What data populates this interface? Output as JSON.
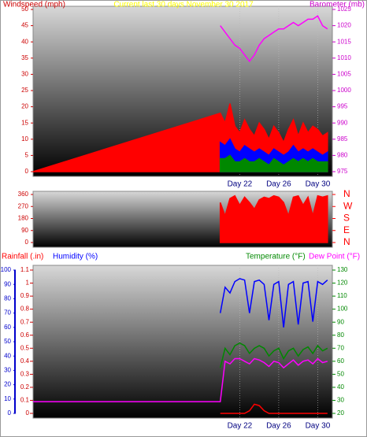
{
  "chart_data": [
    {
      "type": "line",
      "title": "Current last 30 days November 30 2017",
      "ylabel": "Windspeed (mph)",
      "y2label": "Barometer (mb)",
      "ycolor": "#cc0000",
      "y2color": "#cc00cc",
      "xlim": [
        0.8,
        31.5
      ],
      "xticks": [
        {
          "value": 22,
          "label": "Day 22"
        },
        {
          "value": 26,
          "label": "Day 26"
        },
        {
          "value": 30,
          "label": "Day 30"
        }
      ],
      "ylim": [
        0,
        50
      ],
      "yticks": [
        0,
        5,
        10,
        15,
        20,
        25,
        30,
        35,
        40,
        45,
        50
      ],
      "y2lim": [
        975,
        1025
      ],
      "y2ticks": [
        975,
        980,
        985,
        990,
        995,
        1000,
        1005,
        1010,
        1015,
        1020,
        1025
      ],
      "x": [
        0.8,
        20,
        20.5,
        21,
        21.5,
        22,
        22.5,
        23,
        23.5,
        24,
        24.5,
        25,
        25.5,
        26,
        26.5,
        27,
        27.5,
        28,
        28.5,
        29,
        29.5,
        30,
        30.5,
        31
      ],
      "series": [
        {
          "style": "area",
          "color": "#ff0000",
          "values": [
            0,
            18,
            15,
            21,
            14,
            12,
            16,
            13,
            11,
            15,
            13,
            10,
            14,
            12,
            9,
            13,
            16,
            11,
            15,
            12,
            14,
            13,
            11,
            12
          ]
        },
        {
          "style": "area",
          "color": "#0000ff",
          "values": [
            null,
            9,
            8,
            10,
            7,
            6,
            8,
            7,
            6,
            7,
            6,
            5,
            7,
            6,
            5,
            6,
            8,
            6,
            7,
            6,
            7,
            6,
            5,
            6
          ]
        },
        {
          "style": "area",
          "color": "#008800",
          "values": [
            null,
            4,
            4,
            5,
            3,
            3,
            4,
            3,
            3,
            4,
            3,
            2,
            4,
            3,
            2,
            3,
            4,
            3,
            4,
            3,
            4,
            3,
            3,
            3
          ]
        },
        {
          "style": "line",
          "color": "#ff00ff",
          "axis": "y2",
          "values": [
            null,
            1020,
            1018,
            1016,
            1014,
            1013,
            1011,
            1009,
            1011,
            1014,
            1016,
            1017,
            1018,
            1019,
            1019,
            1020,
            1021,
            1020,
            1021,
            1022,
            1022,
            1023,
            1020,
            1019
          ]
        }
      ]
    },
    {
      "type": "line",
      "ycolor": "#cc0000",
      "y2color": "#ff0000",
      "xlim": [
        0.8,
        31.5
      ],
      "ylim": [
        0,
        360
      ],
      "yticks": [
        0,
        90,
        180,
        270,
        360
      ],
      "y2lim": [
        0,
        360
      ],
      "y2ticks": [
        {
          "value": 0,
          "label": "N"
        },
        {
          "value": 90,
          "label": "E"
        },
        {
          "value": 180,
          "label": "S"
        },
        {
          "value": 270,
          "label": "W"
        },
        {
          "value": 360,
          "label": "N"
        }
      ],
      "x": [
        0.8,
        20,
        20.5,
        21,
        21.5,
        22,
        22.5,
        23,
        23.5,
        24,
        24.5,
        25,
        25.5,
        26,
        26.5,
        27,
        27.5,
        28,
        28.5,
        29,
        29.5,
        30,
        30.5,
        31
      ],
      "series": [
        {
          "style": "area",
          "color": "#ff0000",
          "values": [
            null,
            300,
            200,
            330,
            350,
            280,
            340,
            300,
            250,
            320,
            340,
            330,
            350,
            340,
            300,
            200,
            340,
            350,
            280,
            340,
            200,
            350,
            340,
            350
          ]
        }
      ]
    },
    {
      "type": "line",
      "ycolor": "#0000cc",
      "y2color": "#008800",
      "y3color": "#cc0000",
      "xlim": [
        0.8,
        31.5
      ],
      "xticks": [
        {
          "value": 22,
          "label": "Day 22"
        },
        {
          "value": 26,
          "label": "Day 26"
        },
        {
          "value": 30,
          "label": "Day 30"
        }
      ],
      "ylim": [
        0,
        100
      ],
      "yticks": [
        0,
        10,
        20,
        30,
        40,
        50,
        60,
        70,
        80,
        90,
        100
      ],
      "y2lim": [
        20,
        130
      ],
      "y2ticks": [
        20,
        30,
        40,
        50,
        60,
        70,
        80,
        90,
        100,
        110,
        120,
        130
      ],
      "y3lim": [
        0,
        1.1
      ],
      "y3ticks": [
        0,
        0.1,
        0.2,
        0.3,
        0.4,
        0.5,
        0.6,
        0.7,
        0.8,
        0.9,
        1,
        1.1
      ],
      "x": [
        0.8,
        20,
        20.5,
        21,
        21.5,
        22,
        22.5,
        23,
        23.5,
        24,
        24.5,
        25,
        25.5,
        26,
        26.5,
        27,
        27.5,
        28,
        28.5,
        29,
        29.5,
        30,
        30.5,
        31
      ],
      "series": [
        {
          "name": "Rainfall (.in)",
          "style": "line",
          "color": "#ff0000",
          "axis": "y3",
          "values": [
            null,
            0,
            0,
            0,
            0,
            0,
            0,
            0.02,
            0.07,
            0.06,
            0.02,
            0,
            0,
            0,
            0,
            0,
            0,
            0,
            0,
            0,
            0,
            0,
            0,
            0
          ]
        },
        {
          "name": "Humidity (%)",
          "style": "line",
          "color": "#0000ff",
          "values": [
            null,
            70,
            88,
            84,
            92,
            94,
            93,
            70,
            92,
            93,
            90,
            65,
            90,
            92,
            60,
            90,
            92,
            62,
            91,
            92,
            64,
            92,
            90,
            93
          ]
        },
        {
          "name": "Temperature (°F)",
          "style": "line",
          "color": "#008800",
          "axis": "y2",
          "values": [
            null,
            55,
            70,
            65,
            72,
            74,
            72,
            66,
            70,
            72,
            70,
            64,
            68,
            70,
            62,
            68,
            70,
            64,
            69,
            71,
            66,
            72,
            68,
            70
          ]
        },
        {
          "name": "Dew Point (°F)",
          "style": "line",
          "color": "#ff00ff",
          "axis": "y2",
          "values": [
            29,
            29,
            60,
            58,
            62,
            62,
            60,
            58,
            62,
            61,
            59,
            56,
            60,
            59,
            55,
            58,
            61,
            57,
            60,
            61,
            58,
            62,
            59,
            60
          ]
        }
      ]
    }
  ]
}
